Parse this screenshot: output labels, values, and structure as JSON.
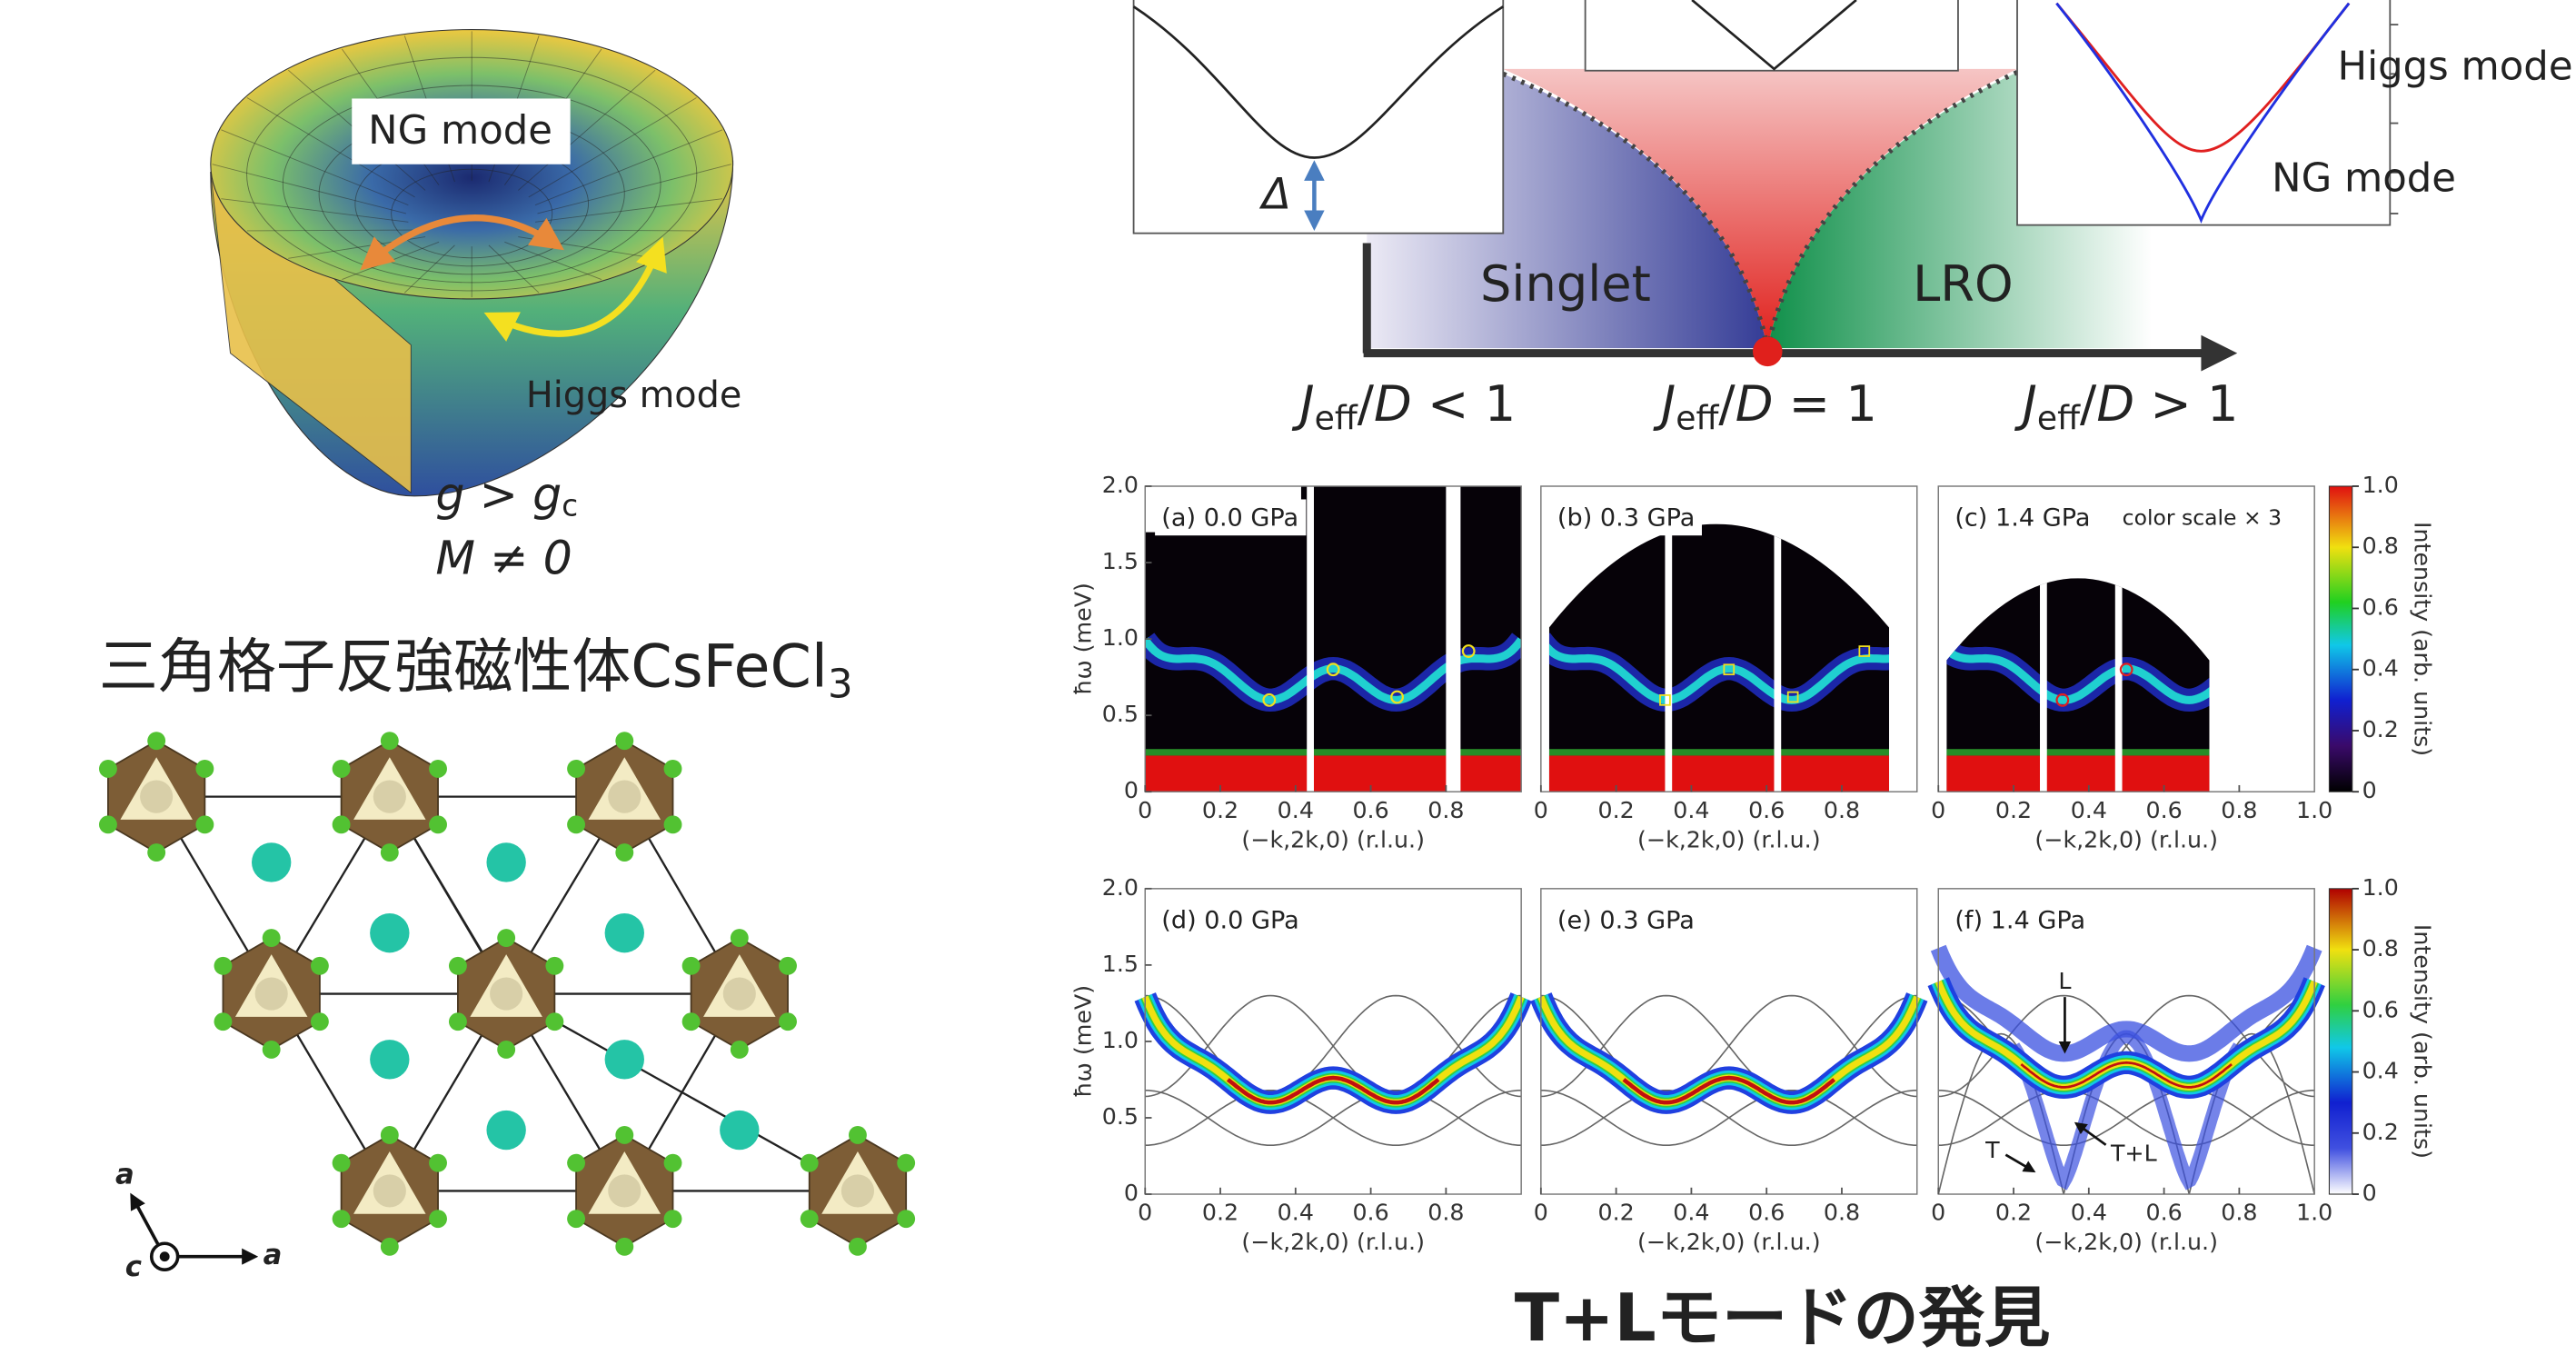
{
  "hat": {
    "ng_mode": "NG mode",
    "higgs_mode": "Higgs mode",
    "condition1": {
      "main": "g > g",
      "sub": "c"
    },
    "condition2": "M ≠ 0"
  },
  "material": {
    "main": "三角格子反強磁性体CsFeCl",
    "sub": "3"
  },
  "crystal_axes": [
    "a",
    "c",
    "a"
  ],
  "phase_diagram": {
    "gap": "Δ",
    "singlet": "Singlet",
    "lro": "LRO",
    "higgs_mode": "Higgs mode",
    "ng_mode": "NG mode",
    "x_labels": [
      {
        "j": "J",
        "sub": "eff",
        "slash": "/",
        "d": "D",
        "rest": " < 1"
      },
      {
        "j": "J",
        "sub": "eff",
        "slash": "/",
        "d": "D",
        "rest": " = 1"
      },
      {
        "j": "J",
        "sub": "eff",
        "slash": "/",
        "d": "D",
        "rest": " > 1"
      }
    ]
  },
  "panels": [
    {
      "label": "(a) 0.0 GPa"
    },
    {
      "label": "(b) 0.3 GPa"
    },
    {
      "label": "(c) 1.4 GPa",
      "note": "color scale × 3"
    },
    {
      "label": "(d) 0.0 GPa"
    },
    {
      "label": "(e) 0.3 GPa"
    },
    {
      "label": "(f) 1.4 GPa"
    }
  ],
  "plot": {
    "ylabel": "ħω (meV)",
    "yticks": [
      "0",
      "0.5",
      "1.0",
      "1.5",
      "2.0"
    ],
    "xticks": [
      "0",
      "0.2",
      "0.4",
      "0.6",
      "0.8"
    ],
    "xtick_last": "1.0",
    "xlabel": "(−k,2k,0) (r.l.u.)",
    "colorbar_ticks": [
      "0",
      "0.2",
      "0.4",
      "0.6",
      "0.8",
      "1.0"
    ],
    "colorbar_label": "Intensity (arb. units)"
  },
  "annotations": {
    "L": "L",
    "T": "T",
    "TL": "T+L"
  },
  "caption": "T+Lモードの発見"
}
